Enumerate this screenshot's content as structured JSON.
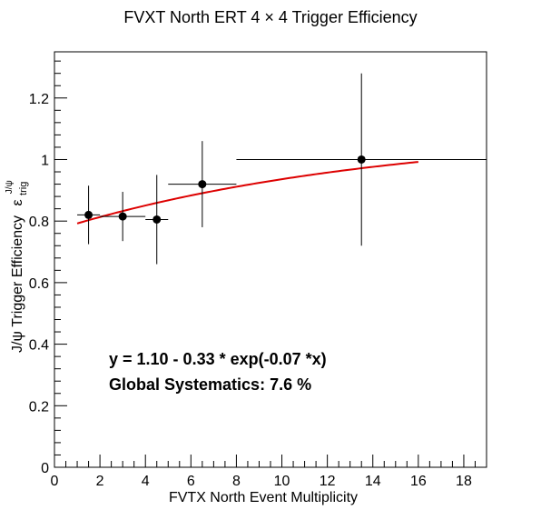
{
  "chart_data": {
    "type": "scatter",
    "title": "FVXT North ERT 4 × 4 Trigger Efficiency",
    "xlabel": "FVTX North Event Multiplicity",
    "ylabel": "J/ψ Trigger Efficiency",
    "ylabel_symbol": "ε",
    "ylabel_sub": "trig",
    "ylabel_sup": "J/ψ",
    "xlim": [
      0,
      19
    ],
    "ylim": [
      0,
      1.35
    ],
    "x_ticks": [
      0,
      2,
      4,
      6,
      8,
      10,
      12,
      14,
      16,
      18
    ],
    "y_ticks": [
      0,
      0.2,
      0.4,
      0.6,
      0.8,
      1,
      1.2
    ],
    "x_tick_labels": [
      "0",
      "2",
      "4",
      "6",
      "8",
      "10",
      "12",
      "14",
      "16",
      "18"
    ],
    "y_tick_labels": [
      "0",
      "0.2",
      "0.4",
      "0.6",
      "0.8",
      "1",
      "1.2"
    ],
    "grid": false,
    "points": [
      {
        "x": 1.5,
        "y": 0.82,
        "xlo": 1.0,
        "xhi": 2.0,
        "ylo": 0.725,
        "yhi": 0.915
      },
      {
        "x": 3.0,
        "y": 0.815,
        "xlo": 2.0,
        "xhi": 4.0,
        "ylo": 0.735,
        "yhi": 0.895
      },
      {
        "x": 4.5,
        "y": 0.805,
        "xlo": 4.0,
        "xhi": 5.0,
        "ylo": 0.66,
        "yhi": 0.95
      },
      {
        "x": 6.5,
        "y": 0.92,
        "xlo": 5.0,
        "xhi": 8.0,
        "ylo": 0.78,
        "yhi": 1.06
      },
      {
        "x": 13.5,
        "y": 1.0,
        "xlo": 8.0,
        "xhi": 19.0,
        "ylo": 0.72,
        "yhi": 1.28
      }
    ],
    "fit": {
      "a": 1.1,
      "b": 0.33,
      "c": 0.07,
      "x_range": [
        1,
        16
      ],
      "color": "#dd0000"
    },
    "annotations": [
      "y = 1.10 - 0.33  * exp(-0.07  *x)",
      "Global Systematics: 7.6 %"
    ]
  }
}
